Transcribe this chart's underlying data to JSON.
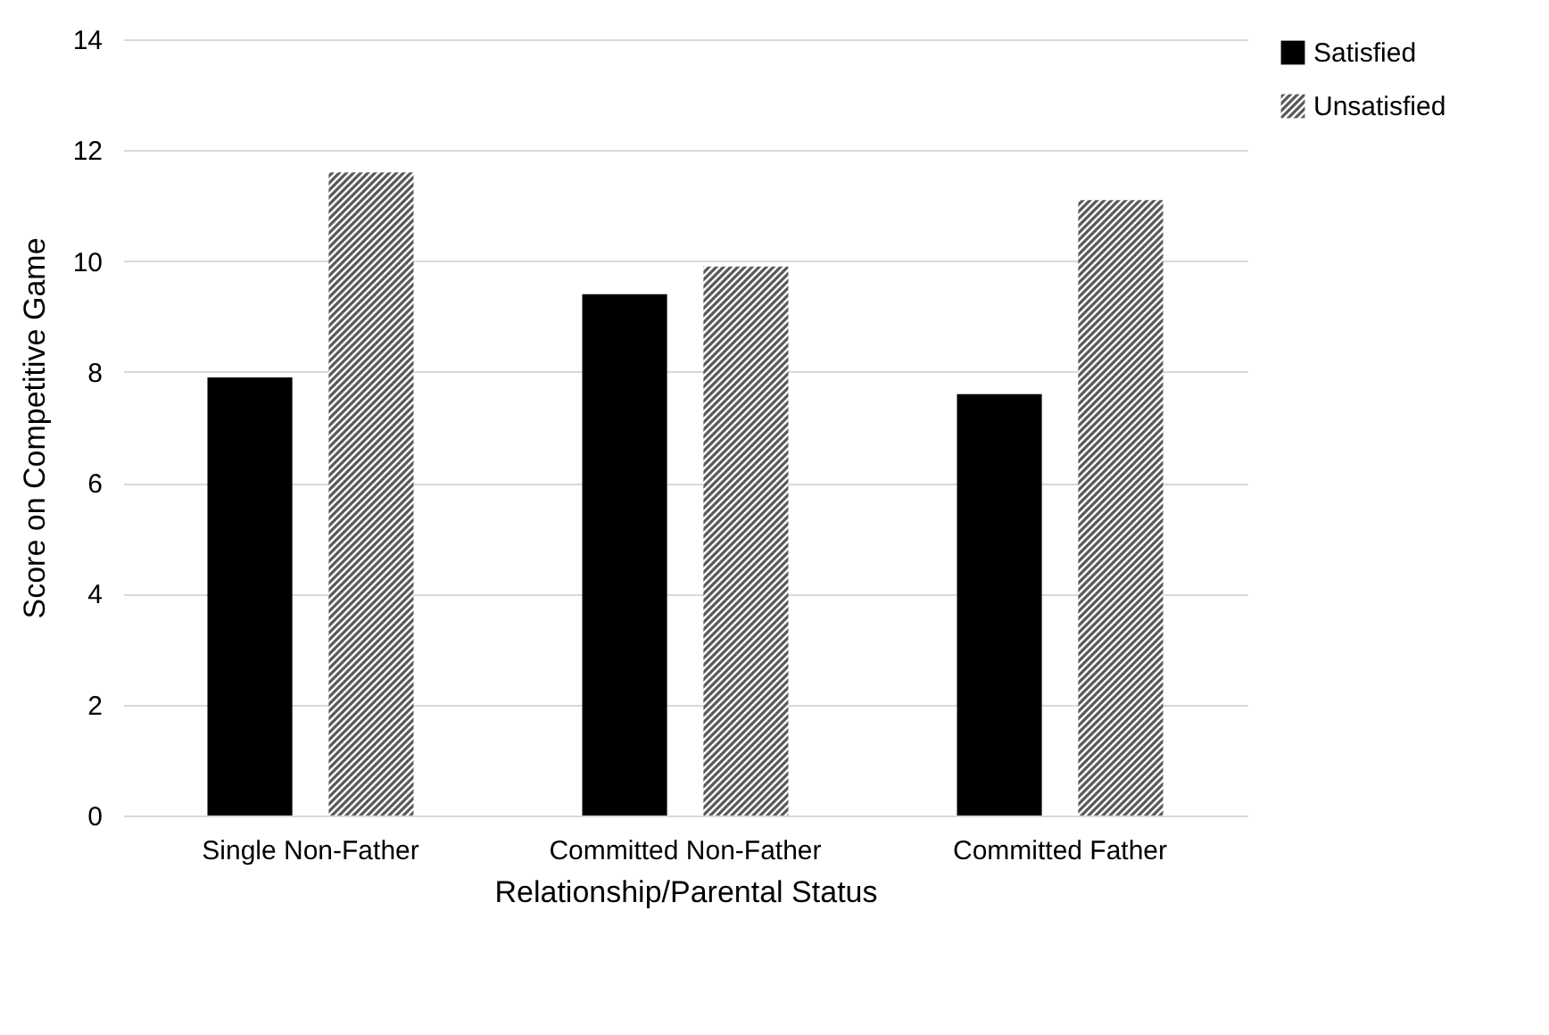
{
  "chart_data": {
    "type": "bar",
    "xlabel": "Relationship/Parental Status",
    "ylabel": "Score on Competitive Game",
    "categories": [
      "Single Non-Father",
      "Committed Non-Father",
      "Committed Father"
    ],
    "series": [
      {
        "name": "Satisfied",
        "color": "#000000",
        "values": [
          7.9,
          9.4,
          7.6
        ]
      },
      {
        "name": "Unsatisfied",
        "color": "#595959",
        "values": [
          11.6,
          9.9,
          11.1
        ]
      }
    ],
    "ylim": [
      0,
      14
    ],
    "yticks": [
      0,
      2,
      4,
      6,
      8,
      10,
      12,
      14
    ],
    "grid": "y",
    "legend": "right"
  }
}
